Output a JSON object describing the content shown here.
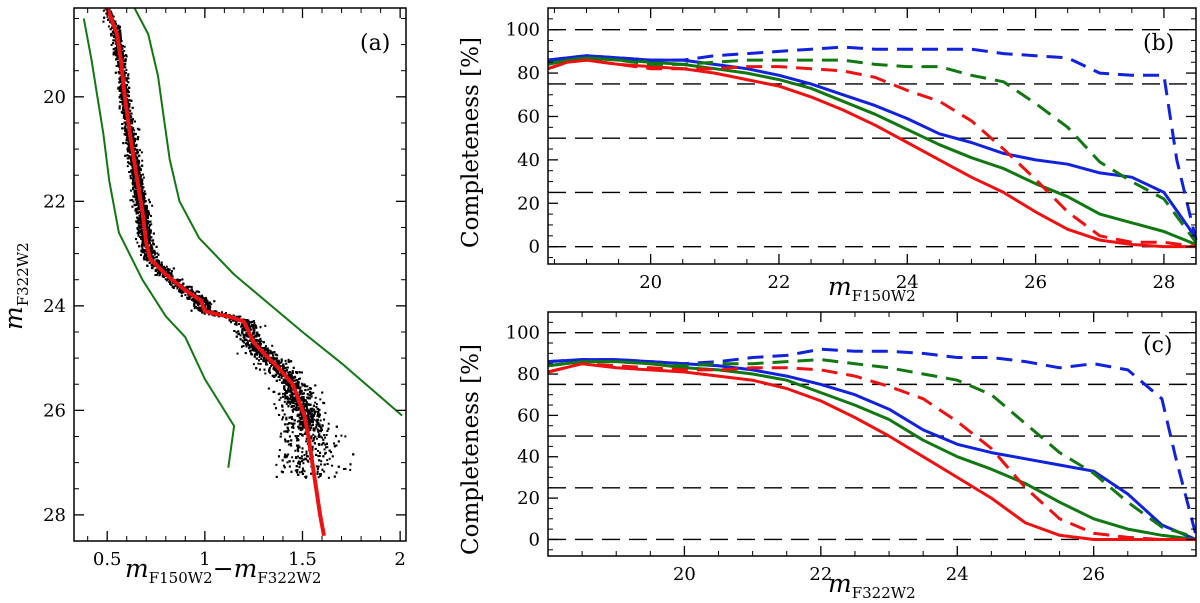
{
  "chart_data": [
    {
      "panel": "(a)",
      "type": "scatter",
      "xlabel": {
        "main": "m",
        "sub": "F150W2",
        "minus": "−",
        "main2": "m",
        "sub2": "F322W2"
      },
      "ylabel": {
        "main": "m",
        "sub": "F322W2"
      },
      "xlim": [
        0.33,
        2.03
      ],
      "ylim": [
        28.5,
        18.3
      ],
      "xticks": [
        "0.5",
        "1",
        "1.5",
        "2"
      ],
      "xtick_values": [
        0.5,
        1.0,
        1.5,
        2.0
      ],
      "yticks": [
        "20",
        "22",
        "24",
        "26",
        "28"
      ],
      "ytick_values": [
        20,
        22,
        24,
        26,
        28
      ],
      "fiducial_line": {
        "color": "#ee1111",
        "points": [
          [
            0.5,
            18.3
          ],
          [
            0.55,
            18.8
          ],
          [
            0.57,
            19.3
          ],
          [
            0.59,
            20.0
          ],
          [
            0.62,
            20.8
          ],
          [
            0.65,
            21.5
          ],
          [
            0.68,
            22.2
          ],
          [
            0.7,
            22.8
          ],
          [
            0.72,
            23.1
          ],
          [
            0.8,
            23.4
          ],
          [
            0.9,
            23.7
          ],
          [
            0.98,
            23.9
          ],
          [
            1.0,
            24.1
          ],
          [
            1.05,
            24.15
          ],
          [
            1.12,
            24.2
          ],
          [
            1.2,
            24.3
          ],
          [
            1.25,
            24.7
          ],
          [
            1.3,
            24.9
          ],
          [
            1.38,
            25.2
          ],
          [
            1.45,
            25.5
          ],
          [
            1.48,
            25.8
          ],
          [
            1.51,
            26.1
          ],
          [
            1.53,
            26.5
          ],
          [
            1.55,
            27.0
          ],
          [
            1.57,
            27.5
          ],
          [
            1.59,
            28.0
          ],
          [
            1.61,
            28.4
          ]
        ]
      },
      "envelope_left": {
        "color": "#117711",
        "points": [
          [
            0.38,
            18.5
          ],
          [
            0.42,
            19.3
          ],
          [
            0.45,
            20.0
          ],
          [
            0.48,
            20.7
          ],
          [
            0.51,
            21.6
          ],
          [
            0.56,
            22.6
          ],
          [
            0.68,
            23.5
          ],
          [
            0.8,
            24.2
          ],
          [
            0.9,
            24.6
          ],
          [
            1.0,
            25.4
          ],
          [
            1.1,
            26.0
          ],
          [
            1.15,
            26.3
          ],
          [
            1.12,
            27.1
          ]
        ]
      },
      "envelope_right": {
        "color": "#117711",
        "points": [
          [
            0.64,
            18.3
          ],
          [
            0.71,
            18.8
          ],
          [
            0.76,
            19.6
          ],
          [
            0.79,
            20.4
          ],
          [
            0.82,
            21.2
          ],
          [
            0.87,
            22.0
          ],
          [
            0.97,
            22.7
          ],
          [
            1.15,
            23.4
          ],
          [
            1.5,
            24.5
          ],
          [
            1.7,
            25.1
          ],
          [
            2.01,
            26.1
          ]
        ]
      },
      "scatter": {
        "color": "#000000",
        "n_points": 6500,
        "description": "stellar main sequence"
      }
    },
    {
      "panel": "(b)",
      "type": "line",
      "xlabel": {
        "main": "m",
        "sub": "F150W2"
      },
      "ylabel": "Completeness [%]",
      "xlim": [
        18.4,
        28.5
      ],
      "ylim": [
        -8,
        110
      ],
      "xticks": [
        "20",
        "22",
        "24",
        "26",
        "28"
      ],
      "xtick_values": [
        20,
        22,
        24,
        26,
        28
      ],
      "yticks": [
        "0",
        "20",
        "40",
        "60",
        "80",
        "100"
      ],
      "ytick_values": [
        0,
        20,
        40,
        60,
        80,
        100
      ],
      "reference_lines": [
        0,
        25,
        50,
        75,
        100
      ],
      "series": [
        {
          "name": "blue solid",
          "color": "#1122dd",
          "style": "solid",
          "x": [
            18.4,
            18.7,
            19.0,
            19.5,
            20.0,
            20.5,
            21.0,
            21.5,
            22.0,
            22.5,
            23.0,
            23.5,
            24.0,
            24.5,
            25.0,
            25.5,
            26.0,
            26.5,
            27.0,
            27.5,
            28.0,
            28.5
          ],
          "y": [
            86,
            87,
            88,
            87,
            86,
            86,
            84,
            82,
            79,
            75,
            70,
            65,
            59,
            52,
            48,
            43,
            40,
            38,
            34,
            32,
            25,
            4
          ]
        },
        {
          "name": "green solid",
          "color": "#117711",
          "style": "solid",
          "x": [
            18.4,
            18.7,
            19.0,
            19.5,
            20.0,
            20.5,
            21.0,
            21.5,
            22.0,
            22.5,
            23.0,
            23.5,
            24.0,
            24.5,
            25.0,
            25.5,
            26.0,
            26.5,
            27.0,
            27.5,
            28.0,
            28.5
          ],
          "y": [
            85,
            86,
            87,
            86,
            85,
            84,
            82,
            80,
            77,
            73,
            67,
            61,
            54,
            47,
            41,
            36,
            29,
            23,
            15,
            11,
            7,
            1
          ]
        },
        {
          "name": "red solid",
          "color": "#ee1111",
          "style": "solid",
          "x": [
            18.4,
            18.7,
            19.0,
            19.5,
            20.0,
            20.5,
            21.0,
            21.5,
            22.0,
            22.5,
            23.0,
            23.5,
            24.0,
            24.5,
            25.0,
            25.5,
            26.0,
            26.5,
            27.0,
            27.5,
            28.0,
            28.5
          ],
          "y": [
            82,
            85,
            86,
            84,
            83,
            82,
            80,
            77,
            74,
            69,
            63,
            56,
            48,
            40,
            32,
            25,
            16,
            8,
            3,
            1,
            0,
            0
          ]
        },
        {
          "name": "blue dashed",
          "color": "#1122dd",
          "style": "dashed",
          "x": [
            18.4,
            18.7,
            19.0,
            19.5,
            20.0,
            20.5,
            21.0,
            21.5,
            22.0,
            22.5,
            23.0,
            23.5,
            24.0,
            24.5,
            25.0,
            25.5,
            26.0,
            26.5,
            27.0,
            27.5,
            28.0,
            28.2,
            28.5
          ],
          "y": [
            86,
            87,
            88,
            87,
            86,
            86,
            88,
            89,
            90,
            91,
            92,
            91,
            91,
            91,
            91,
            89,
            88,
            87,
            80,
            79,
            79,
            40,
            3
          ]
        },
        {
          "name": "green dashed",
          "color": "#117711",
          "style": "dashed",
          "x": [
            18.4,
            18.7,
            19.0,
            19.5,
            20.0,
            20.5,
            21.0,
            21.5,
            22.0,
            22.5,
            23.0,
            23.5,
            24.0,
            24.5,
            25.0,
            25.5,
            26.0,
            26.5,
            27.0,
            27.5,
            28.0,
            28.5
          ],
          "y": [
            84,
            86,
            87,
            86,
            84,
            84,
            85,
            86,
            86,
            86,
            86,
            84,
            83,
            83,
            79,
            76,
            66,
            55,
            39,
            30,
            22,
            2
          ]
        },
        {
          "name": "red dashed",
          "color": "#ee1111",
          "style": "dashed",
          "x": [
            18.4,
            18.7,
            19.0,
            19.5,
            20.0,
            20.5,
            21.0,
            21.5,
            22.0,
            22.5,
            23.0,
            23.5,
            24.0,
            24.5,
            25.0,
            25.5,
            26.0,
            26.5,
            27.0,
            27.5,
            28.0,
            28.5
          ],
          "y": [
            82,
            85,
            86,
            84,
            82,
            82,
            82,
            83,
            83,
            82,
            81,
            78,
            72,
            67,
            58,
            45,
            31,
            16,
            5,
            2,
            2,
            0
          ]
        }
      ]
    },
    {
      "panel": "(c)",
      "type": "line",
      "xlabel": {
        "main": "m",
        "sub": "F322W2"
      },
      "ylabel": "Completeness [%]",
      "xlim": [
        18.0,
        27.5
      ],
      "ylim": [
        -8,
        110
      ],
      "xticks": [
        "20",
        "22",
        "24",
        "26"
      ],
      "xtick_values": [
        20,
        22,
        24,
        26
      ],
      "yticks": [
        "0",
        "20",
        "40",
        "60",
        "80",
        "100"
      ],
      "ytick_values": [
        0,
        20,
        40,
        60,
        80,
        100
      ],
      "reference_lines": [
        0,
        25,
        50,
        75,
        100
      ],
      "series": [
        {
          "name": "blue solid",
          "color": "#1122dd",
          "style": "solid",
          "x": [
            18.0,
            18.5,
            19.0,
            19.5,
            20.0,
            20.5,
            21.0,
            21.5,
            22.0,
            22.5,
            23.0,
            23.5,
            24.0,
            24.5,
            25.0,
            25.5,
            26.0,
            26.5,
            27.0,
            27.5
          ],
          "y": [
            86,
            87,
            87,
            86,
            85,
            84,
            82,
            79,
            75,
            70,
            63,
            53,
            46,
            42,
            39,
            36,
            33,
            22,
            7,
            0
          ]
        },
        {
          "name": "green solid",
          "color": "#117711",
          "style": "solid",
          "x": [
            18.0,
            18.5,
            19.0,
            19.5,
            20.0,
            20.5,
            21.0,
            21.5,
            22.0,
            22.5,
            23.0,
            23.5,
            24.0,
            24.5,
            25.0,
            25.5,
            26.0,
            26.5,
            27.0,
            27.5
          ],
          "y": [
            84,
            86,
            86,
            85,
            83,
            82,
            80,
            77,
            71,
            65,
            58,
            48,
            40,
            34,
            27,
            18,
            10,
            5,
            2,
            0
          ]
        },
        {
          "name": "red solid",
          "color": "#ee1111",
          "style": "solid",
          "x": [
            18.0,
            18.5,
            19.0,
            19.5,
            20.0,
            20.5,
            21.0,
            21.5,
            22.0,
            22.5,
            23.0,
            23.5,
            24.0,
            24.5,
            25.0,
            25.5,
            26.0,
            26.5,
            27.0,
            27.5
          ],
          "y": [
            81,
            85,
            83,
            82,
            81,
            79,
            77,
            73,
            67,
            59,
            50,
            40,
            30,
            20,
            8,
            2,
            0,
            0,
            0,
            0
          ]
        },
        {
          "name": "blue dashed",
          "color": "#1122dd",
          "style": "dashed",
          "x": [
            18.0,
            18.5,
            19.0,
            19.5,
            20.0,
            20.5,
            21.0,
            21.5,
            22.0,
            22.5,
            23.0,
            23.5,
            24.0,
            24.5,
            25.0,
            25.5,
            26.0,
            26.5,
            27.0,
            27.2,
            27.5
          ],
          "y": [
            86,
            87,
            87,
            86,
            85,
            86,
            88,
            89,
            92,
            91,
            91,
            90,
            88,
            88,
            86,
            83,
            85,
            82,
            68,
            40,
            2
          ]
        },
        {
          "name": "green dashed",
          "color": "#117711",
          "style": "dashed",
          "x": [
            18.0,
            18.5,
            19.0,
            19.5,
            20.0,
            20.5,
            21.0,
            21.5,
            22.0,
            22.5,
            23.0,
            23.5,
            24.0,
            24.5,
            25.0,
            25.5,
            26.0,
            26.5,
            27.0,
            27.5
          ],
          "y": [
            84,
            86,
            86,
            85,
            84,
            85,
            85,
            86,
            87,
            85,
            83,
            80,
            77,
            70,
            56,
            42,
            32,
            18,
            6,
            1
          ]
        },
        {
          "name": "red dashed",
          "color": "#ee1111",
          "style": "dashed",
          "x": [
            18.0,
            18.5,
            19.0,
            19.5,
            20.0,
            20.5,
            21.0,
            21.5,
            22.0,
            22.5,
            23.0,
            23.5,
            24.0,
            24.5,
            25.0,
            25.5,
            26.0,
            26.5,
            27.0,
            27.5
          ],
          "y": [
            81,
            85,
            84,
            83,
            82,
            82,
            83,
            83,
            82,
            79,
            74,
            68,
            57,
            44,
            25,
            10,
            3,
            1,
            0,
            0
          ]
        }
      ]
    }
  ]
}
